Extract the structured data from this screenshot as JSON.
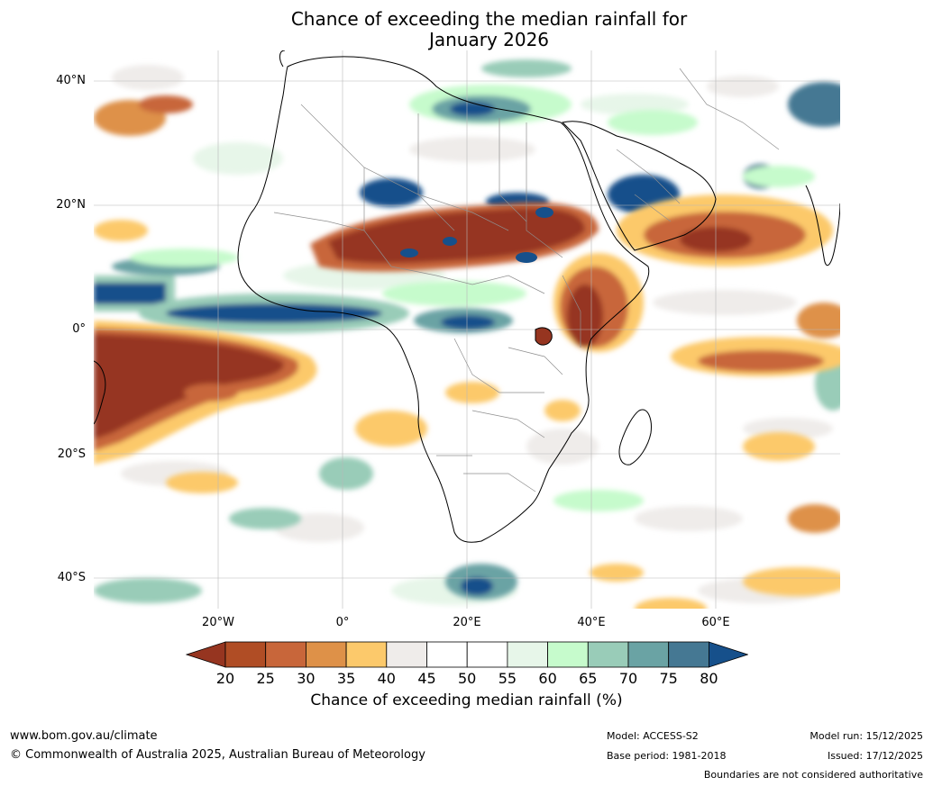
{
  "title": {
    "line1": "Chance of exceeding the median rainfall for",
    "line2": "January 2026"
  },
  "map": {
    "region": "Africa",
    "latitude_labels": [
      "40°N",
      "20°N",
      "0°",
      "20°S",
      "40°S"
    ],
    "longitude_labels": [
      "20°W",
      "0°",
      "20°E",
      "40°E",
      "60°E"
    ]
  },
  "colorbar": {
    "ticks": [
      "20",
      "25",
      "30",
      "35",
      "40",
      "45",
      "50",
      "55",
      "60",
      "65",
      "70",
      "75",
      "80"
    ],
    "colors": [
      "#963520",
      "#b04d25",
      "#c8663a",
      "#de9148",
      "#fcc96b",
      "#efecea",
      "#ffffff",
      "#ffffff",
      "#e7f6e9",
      "#c6fbcc",
      "#99ccb8",
      "#6aa3a4",
      "#457893",
      "#16508b"
    ],
    "label": "Chance of exceeding median rainfall (%)"
  },
  "footer": {
    "website": "www.bom.gov.au/climate",
    "copyright": "© Commonwealth of Australia 2025, Australian Bureau of Meteorology",
    "model": "Model: ACCESS-S2",
    "base_period": "Base period: 1981-2018",
    "model_run": "Model run: 15/12/2025",
    "issued": "Issued: 17/12/2025",
    "disclaimer": "Boundaries are not considered authoritative"
  }
}
